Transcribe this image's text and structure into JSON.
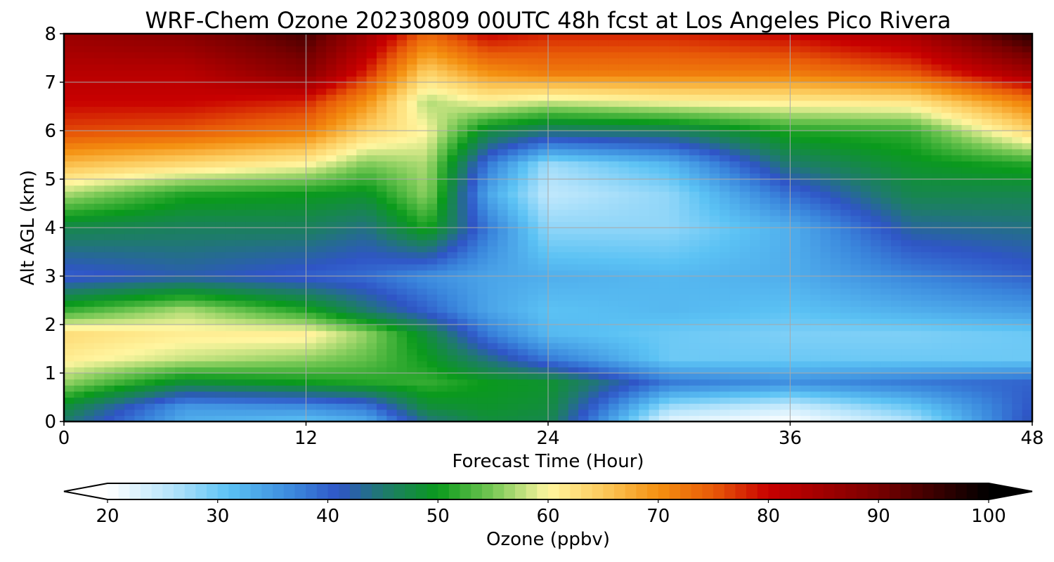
{
  "chart_data": {
    "type": "heatmap",
    "title": "WRF-Chem Ozone  20230809 00UTC 48h fcst at Los Angeles Pico Rivera",
    "xlabel": "Forecast Time (Hour)",
    "ylabel": "Alt AGL (km)",
    "xlim": [
      0,
      48
    ],
    "ylim": [
      0,
      8
    ],
    "x_ticks": [
      "0",
      "12",
      "24",
      "36",
      "48"
    ],
    "y_ticks": [
      "0",
      "1",
      "2",
      "3",
      "4",
      "5",
      "6",
      "7",
      "8"
    ],
    "grid": true,
    "x": [
      0,
      6,
      12,
      15,
      18,
      21,
      24,
      30,
      36,
      42,
      48
    ],
    "y": [
      0,
      0.3,
      0.8,
      1.3,
      1.8,
      2.3,
      3,
      4,
      4.7,
      5.3,
      6,
      6.6,
      7.2,
      8
    ],
    "z": [
      [
        45,
        33,
        31,
        33,
        44,
        48,
        47,
        22,
        20,
        26,
        42
      ],
      [
        48,
        35,
        36,
        38,
        48,
        49,
        48,
        27,
        24,
        30,
        41
      ],
      [
        56,
        48,
        50,
        51,
        52,
        50,
        49,
        38,
        36,
        38,
        40
      ],
      [
        61,
        58,
        56,
        54,
        50,
        44,
        38,
        30,
        30,
        30,
        30
      ],
      [
        63,
        61,
        61,
        56,
        48,
        38,
        32,
        30,
        29,
        29,
        30
      ],
      [
        52,
        57,
        51,
        45,
        40,
        34,
        31,
        32,
        31,
        33,
        35
      ],
      [
        40,
        42,
        40,
        39,
        36,
        34,
        33,
        32,
        33,
        37,
        40
      ],
      [
        47,
        46,
        46,
        44,
        51,
        38,
        28,
        28,
        33,
        43,
        44
      ],
      [
        57,
        51,
        50,
        49,
        56,
        34,
        25,
        28,
        39,
        47,
        47
      ],
      [
        66,
        63,
        60,
        55,
        57,
        38,
        27,
        32,
        45,
        49,
        51
      ],
      [
        76,
        75,
        72,
        64,
        60,
        48,
        45,
        46,
        51,
        52,
        64
      ],
      [
        80,
        80,
        78,
        70,
        57,
        60,
        58,
        60,
        61,
        62,
        72
      ],
      [
        82,
        82,
        88,
        78,
        64,
        70,
        72,
        72,
        72,
        75,
        85
      ],
      [
        86,
        88,
        94,
        85,
        74,
        80,
        78,
        78,
        80,
        84,
        97
      ]
    ],
    "colorbar": {
      "label": "Ozone  (ppbv)",
      "min": 20,
      "max": 100,
      "ticks": [
        "20",
        "30",
        "40",
        "50",
        "60",
        "70",
        "80",
        "90",
        "100"
      ],
      "extend": "both",
      "colors": [
        [
          20,
          "#ffffff"
        ],
        [
          26,
          "#b3e3fb"
        ],
        [
          31,
          "#5bc2f4"
        ],
        [
          37,
          "#3a86dc"
        ],
        [
          41,
          "#2f55c6"
        ],
        [
          45,
          "#1f7a6e"
        ],
        [
          50,
          "#0a9a1c"
        ],
        [
          55,
          "#77c855"
        ],
        [
          60,
          "#fff6a0"
        ],
        [
          65,
          "#fcca5c"
        ],
        [
          70,
          "#f49010"
        ],
        [
          75,
          "#e85a08"
        ],
        [
          80,
          "#c80000"
        ],
        [
          90,
          "#780000"
        ],
        [
          100,
          "#000000"
        ]
      ]
    }
  }
}
